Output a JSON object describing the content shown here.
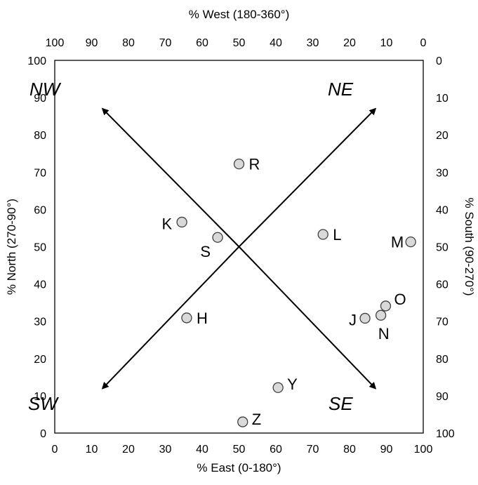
{
  "chart_data": {
    "type": "scatter",
    "axes": {
      "bottom": {
        "label": "% East (0-180°)",
        "range": [
          0,
          100
        ],
        "ticks": [
          0,
          10,
          20,
          30,
          40,
          50,
          60,
          70,
          80,
          90,
          100
        ]
      },
      "left": {
        "label": "% North (270-90°)",
        "range": [
          0,
          100
        ],
        "ticks": [
          0,
          10,
          20,
          30,
          40,
          50,
          60,
          70,
          80,
          90,
          100
        ]
      },
      "top": {
        "label": "% West (180-360°)",
        "range": [
          100,
          0
        ],
        "ticks": [
          100,
          90,
          80,
          70,
          60,
          50,
          40,
          30,
          20,
          10,
          0
        ]
      },
      "right": {
        "label": "% South (90-270°)",
        "range": [
          0,
          100
        ],
        "ticks": [
          0,
          10,
          20,
          30,
          40,
          50,
          60,
          70,
          80,
          90,
          100
        ]
      }
    },
    "grid": false,
    "corner_labels": [
      "NW",
      "NE",
      "SW",
      "SE"
    ],
    "arrows": [
      {
        "from": [
          50,
          50
        ],
        "to": [
          13,
          87
        ],
        "label": "NW"
      },
      {
        "from": [
          50,
          50
        ],
        "to": [
          87,
          87
        ],
        "label": "NE"
      },
      {
        "from": [
          50,
          50
        ],
        "to": [
          13,
          12
        ],
        "label": "SW"
      },
      {
        "from": [
          50,
          50
        ],
        "to": [
          87,
          12
        ],
        "label": "SE"
      }
    ],
    "points": [
      {
        "label": "R",
        "x": 50,
        "y": 72.2
      },
      {
        "label": "K",
        "x": 34.5,
        "y": 56.6
      },
      {
        "label": "S",
        "x": 44.2,
        "y": 52.5
      },
      {
        "label": "L",
        "x": 72.8,
        "y": 53.3
      },
      {
        "label": "M",
        "x": 96.6,
        "y": 51.3
      },
      {
        "label": "H",
        "x": 35.8,
        "y": 30.9
      },
      {
        "label": "O",
        "x": 89.8,
        "y": 34.1
      },
      {
        "label": "J",
        "x": 84.2,
        "y": 30.8
      },
      {
        "label": "N",
        "x": 88.5,
        "y": 31.6
      },
      {
        "label": "Y",
        "x": 60.6,
        "y": 12.2
      },
      {
        "label": "Z",
        "x": 51,
        "y": 3
      }
    ],
    "colors": {
      "marker_fill": "#d9d9d9",
      "marker_stroke": "#404040",
      "arrow": "#000000",
      "frame": "#000000"
    }
  }
}
